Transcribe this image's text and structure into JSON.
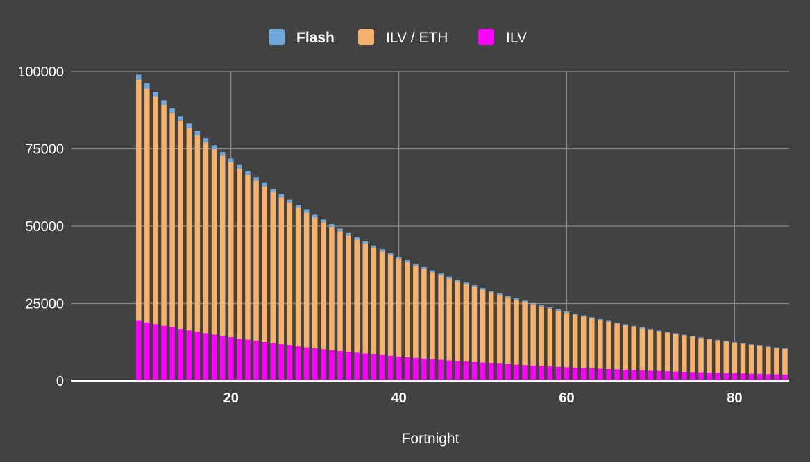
{
  "chart_data": {
    "type": "bar",
    "stacked": true,
    "xlabel": "Fortnight",
    "ylabel": "",
    "title": "",
    "x_start": 9,
    "x_end": 86,
    "xlim": [
      1,
      86.5
    ],
    "ylim": [
      0,
      100000
    ],
    "xticks": [
      20,
      40,
      60,
      80
    ],
    "yticks": [
      0,
      25000,
      50000,
      75000,
      100000
    ],
    "grid": true,
    "legend_position": "top",
    "total_start": 99000,
    "decay_per_fortnight": 0.9713,
    "share": {
      "ILV": 0.196,
      "ILV / ETH": 0.787,
      "Flash": 0.017
    },
    "series": [
      {
        "name": "ILV",
        "color": "#ff00ff"
      },
      {
        "name": "ILV / ETH",
        "color": "#f6b26b"
      },
      {
        "name": "Flash",
        "color": "#6fa8dc"
      }
    ]
  },
  "legend": {
    "items": [
      {
        "label": "Flash",
        "color": "#6fa8dc",
        "bold": true
      },
      {
        "label": "ILV / ETH",
        "color": "#f6b26b",
        "bold": false
      },
      {
        "label": "ILV",
        "color": "#ff00ff",
        "bold": false
      }
    ]
  },
  "colors": {
    "background": "#424242",
    "grid": "#8a8a8a",
    "baseline": "#ffffff"
  }
}
